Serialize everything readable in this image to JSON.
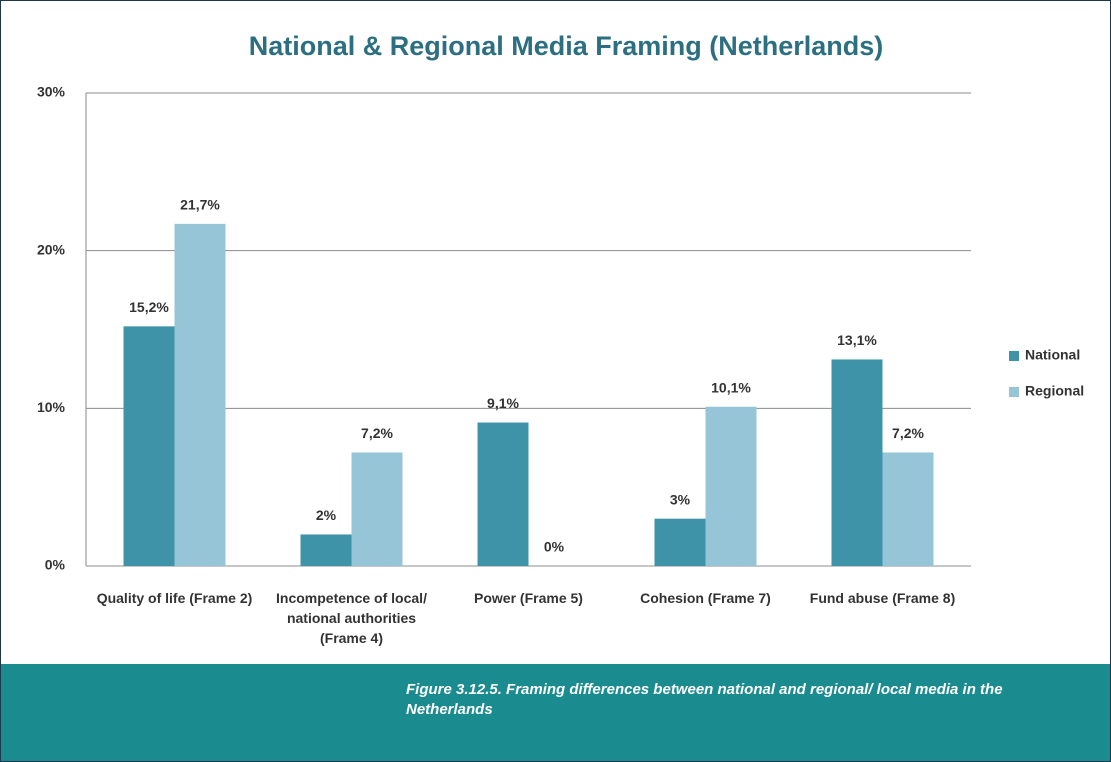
{
  "chart_data": {
    "type": "bar",
    "title": "National & Regional Media Framing  (Netherlands)",
    "categories": [
      "Quality of life (Frame 2)",
      "Incompetence of local/ national authorities (Frame 4)",
      "Power (Frame 5)",
      "Cohesion (Frame 7)",
      "Fund abuse (Frame 8)"
    ],
    "series": [
      {
        "name": "National",
        "color": "#3f93a8",
        "values": [
          15.2,
          2,
          9.1,
          3,
          13.1
        ],
        "value_labels": [
          "15,2%",
          "2%",
          "9,1%",
          "3%",
          "13,1%"
        ]
      },
      {
        "name": "Regional",
        "color": "#95c5d6",
        "values": [
          21.7,
          7.2,
          0,
          10.1,
          7.2
        ],
        "value_labels": [
          "21,7%",
          "7,2%",
          "0%",
          "10,1%",
          "7,2%"
        ]
      }
    ],
    "ylim": [
      0,
      30
    ],
    "yticks": [
      {
        "value": 0,
        "label": "0%"
      },
      {
        "value": 10,
        "label": "10%"
      },
      {
        "value": 20,
        "label": "20%"
      },
      {
        "value": 30,
        "label": "30%"
      }
    ],
    "grid": true,
    "legend": "right"
  },
  "caption": "Figure 3.12.5. Framing differences between national and regional/ local media in the Netherlands"
}
